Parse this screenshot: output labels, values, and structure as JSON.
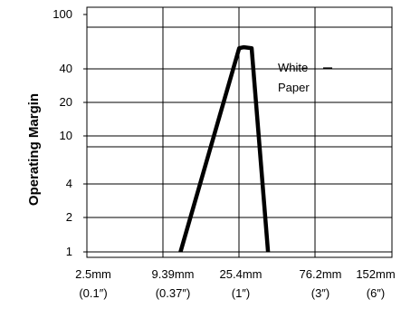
{
  "chart_data": {
    "type": "line",
    "title": "",
    "xlabel": "",
    "ylabel": "Operating Margin",
    "y_scale": "log",
    "ylim": [
      1,
      100
    ],
    "y_ticks": [
      "100",
      "40",
      "20",
      "10",
      "4",
      "2",
      "1"
    ],
    "x_ticks": [
      {
        "metric": "2.5mm",
        "imperial": "(0.1″)"
      },
      {
        "metric": "9.39mm",
        "imperial": "(0.37″)"
      },
      {
        "metric": "25.4mm",
        "imperial": "(1″)"
      },
      {
        "metric": "76.2mm",
        "imperial": "(3″)"
      },
      {
        "metric": "152mm",
        "imperial": "(6″)"
      }
    ],
    "grid": true,
    "series": [
      {
        "name": "White Paper",
        "color": "#000000",
        "points": [
          {
            "x_mm": 10.5,
            "y": 1
          },
          {
            "x_mm": 24.8,
            "y": 52
          },
          {
            "x_mm": 26.5,
            "y": 53
          },
          {
            "x_mm": 29.5,
            "y": 52
          },
          {
            "x_mm": 37.0,
            "y": 1
          }
        ]
      }
    ],
    "annotations": [
      {
        "text_lines": [
          "White",
          "Paper"
        ]
      }
    ]
  }
}
